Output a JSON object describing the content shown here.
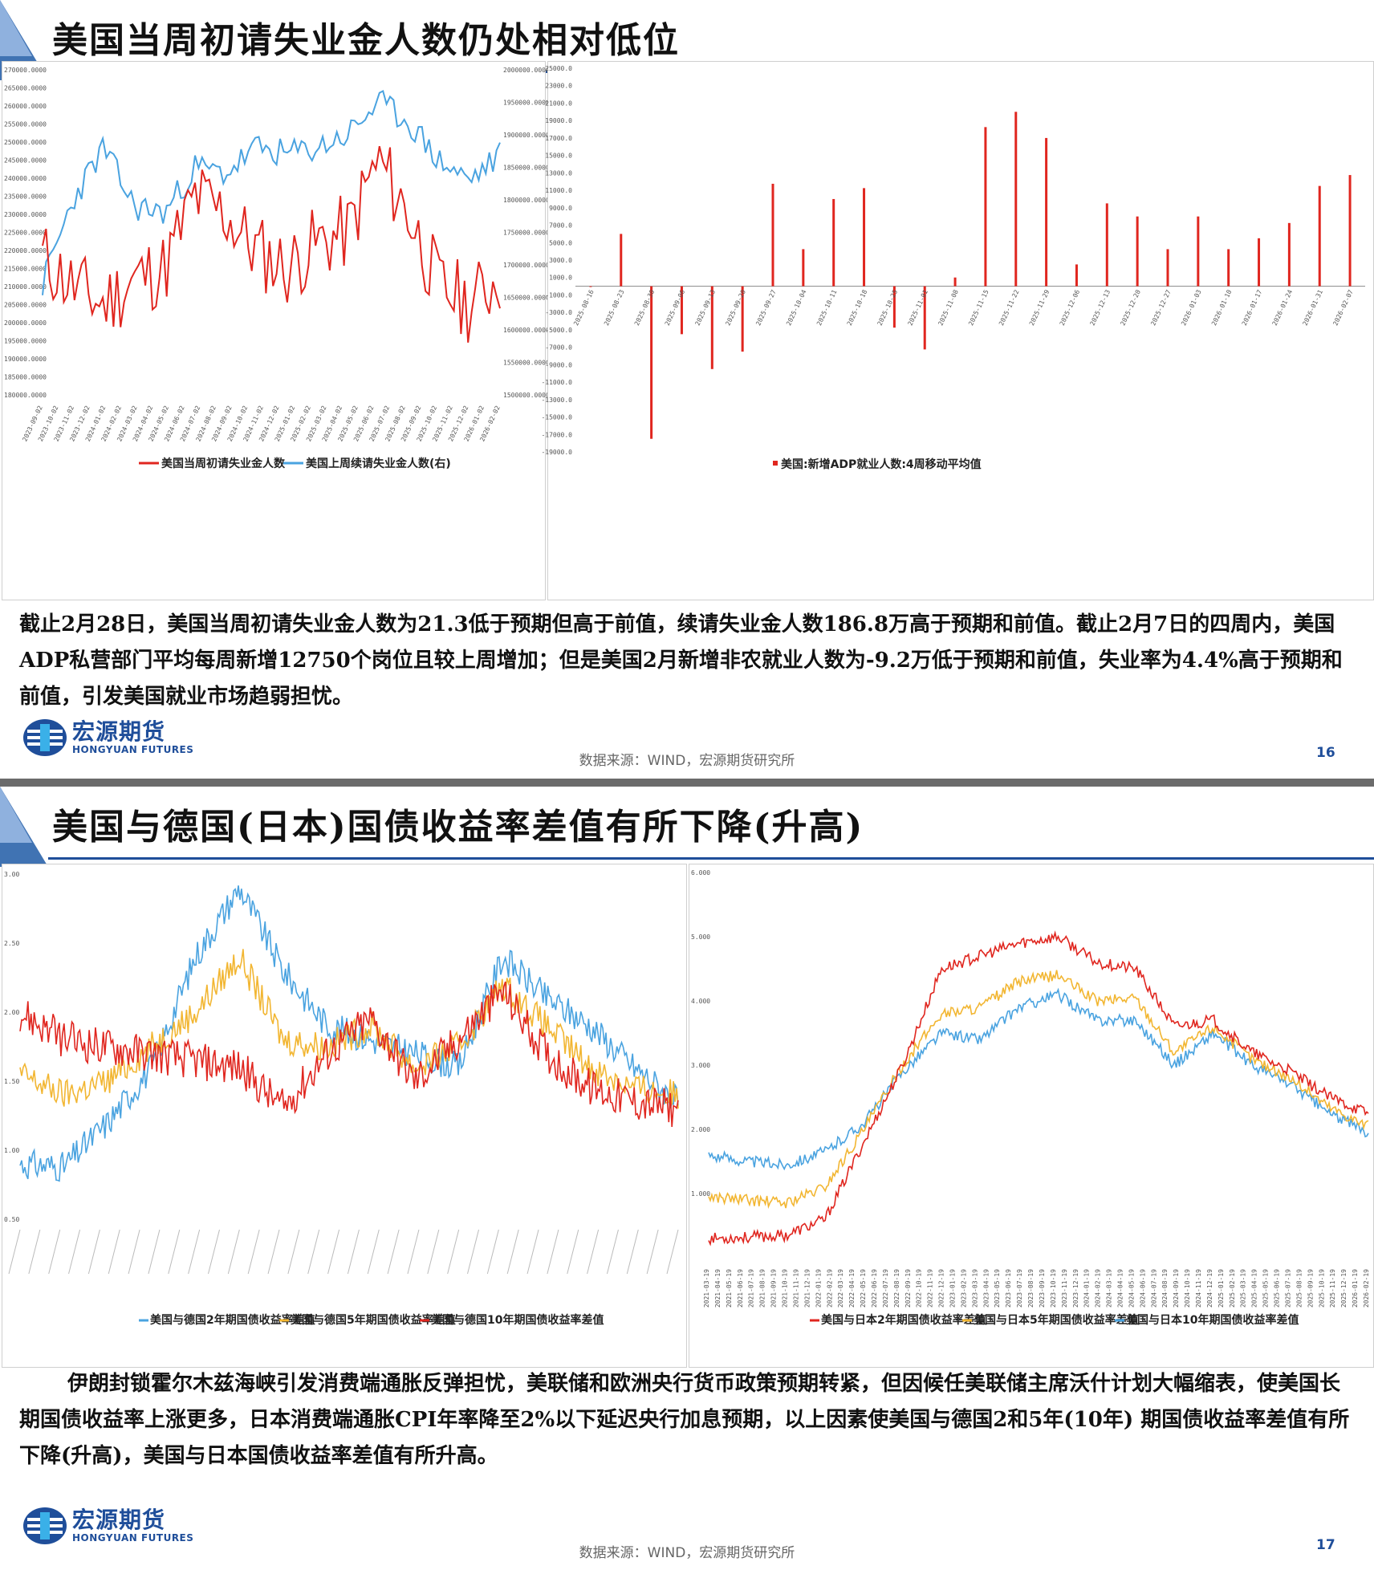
{
  "slide1": {
    "title": "美国当周初请失业金人数仍处相对低位",
    "left_chart": {
      "type": "line",
      "y_left_ticks": [
        "270000.0000",
        "265000.0000",
        "260000.0000",
        "255000.0000",
        "250000.0000",
        "245000.0000",
        "240000.0000",
        "235000.0000",
        "230000.0000",
        "225000.0000",
        "220000.0000",
        "215000.0000",
        "210000.0000",
        "205000.0000",
        "200000.0000",
        "195000.0000",
        "190000.0000",
        "185000.0000",
        "180000.0000"
      ],
      "y_right_ticks": [
        "2000000.0000",
        "1950000.0000",
        "1900000.0000",
        "1850000.0000",
        "1800000.0000",
        "1750000.0000",
        "1700000.0000",
        "1650000.0000",
        "1600000.0000",
        "1550000.0000",
        "1500000.0000"
      ],
      "x_ticks": [
        "2023-09-02",
        "2023-10-02",
        "2023-11-02",
        "2023-12-02",
        "2024-01-02",
        "2024-02-02",
        "2024-03-02",
        "2024-04-02",
        "2024-05-02",
        "2024-06-02",
        "2024-07-02",
        "2024-08-02",
        "2024-09-02",
        "2024-10-02",
        "2024-11-02",
        "2024-12-02",
        "2025-01-02",
        "2025-02-02",
        "2025-03-02",
        "2025-04-02",
        "2025-05-02",
        "2025-06-02",
        "2025-07-02",
        "2025-08-02",
        "2025-09-02",
        "2025-10-02",
        "2025-11-02",
        "2025-12-02",
        "2026-01-02",
        "2026-02-02"
      ],
      "legend": [
        "美国当周初请失业金人数",
        "美国上周续请失业金人数(右)"
      ],
      "colors": [
        "#e0261f",
        "#4aa3e0"
      ]
    },
    "right_chart": {
      "type": "bar",
      "y_ticks": [
        "25000.0",
        "23000.0",
        "21000.0",
        "19000.0",
        "17000.0",
        "15000.0",
        "13000.0",
        "11000.0",
        "9000.0",
        "7000.0",
        "5000.0",
        "3000.0",
        "1000.0",
        "-1000.0",
        "-3000.0",
        "-5000.0",
        "-7000.0",
        "-9000.0",
        "-11000.0",
        "-13000.0",
        "-15000.0",
        "-17000.0",
        "-19000.0"
      ],
      "x_ticks": [
        "2025-08-16",
        "2025-08-23",
        "2025-08-30",
        "2025-09-06",
        "2025-09-13",
        "2025-09-20",
        "2025-09-27",
        "2025-10-04",
        "2025-10-11",
        "2025-10-18",
        "2025-10-25",
        "2025-11-01",
        "2025-11-08",
        "2025-11-15",
        "2025-11-22",
        "2025-11-29",
        "2025-12-06",
        "2025-12-13",
        "2025-12-20",
        "2025-12-27",
        "2026-01-03",
        "2026-01-10",
        "2026-01-17",
        "2026-01-24",
        "2026-01-31",
        "2026-02-07"
      ],
      "legend": [
        "美国:新增ADP就业人数:4周移动平均值"
      ],
      "color": "#e0261f"
    },
    "paragraph": "截止2月28日，美国当周初请失业金人数为21.3低于预期但高于前值，续请失业金人数186.8万高于预期和前值。截止2月7日的四周内，美国ADP私营部门平均每周新增12750个岗位且较上周增加；但是美国2月新增非农就业人数为-9.2万低于预期和前值，失业率为4.4%高于预期和前值，引发美国就业市场趋弱担忧。",
    "source": "数据来源：WIND，宏源期货研究所",
    "page": "16"
  },
  "slide2": {
    "title": "美国与德国(日本)国债收益率差值有所下降(升高)",
    "left_chart": {
      "type": "line",
      "y_ticks": [
        "3.00",
        "2.50",
        "2.00",
        "1.50",
        "1.00",
        "0.50"
      ],
      "legend": [
        "美国与德国2年期国债收益率差值",
        "美国与德国5年期国债收益率差值",
        "美国与德国10年期国债收益率差值"
      ],
      "colors": [
        "#4aa3e0",
        "#f2b632",
        "#e0261f"
      ]
    },
    "right_chart": {
      "type": "line",
      "y_ticks": [
        "6.000",
        "5.000",
        "4.000",
        "3.000",
        "2.000",
        "1.000"
      ],
      "x_ticks": [
        "2021-03-19",
        "2021-04-19",
        "2021-05-19",
        "2021-06-19",
        "2021-07-19",
        "2021-08-19",
        "2021-09-19",
        "2021-10-19",
        "2021-11-19",
        "2021-12-19",
        "2022-01-19",
        "2022-02-19",
        "2022-03-19",
        "2022-04-19",
        "2022-05-19",
        "2022-06-19",
        "2022-07-19",
        "2022-08-19",
        "2022-09-19",
        "2022-10-19",
        "2022-11-19",
        "2022-12-19",
        "2023-01-19",
        "2023-02-19",
        "2023-03-19",
        "2023-04-19",
        "2023-05-19",
        "2023-06-19",
        "2023-07-19",
        "2023-08-19",
        "2023-09-19",
        "2023-10-19",
        "2023-11-19",
        "2023-12-19",
        "2024-01-19",
        "2024-02-19",
        "2024-03-19",
        "2024-04-19",
        "2024-05-19",
        "2024-06-19",
        "2024-07-19",
        "2024-08-19",
        "2024-09-19",
        "2024-10-19",
        "2024-11-19",
        "2024-12-19",
        "2025-01-19",
        "2025-02-19",
        "2025-03-19",
        "2025-04-19",
        "2025-05-19",
        "2025-06-19",
        "2025-07-19",
        "2025-08-19",
        "2025-09-19",
        "2025-10-19",
        "2025-11-19",
        "2025-12-19",
        "2026-01-19",
        "2026-02-19"
      ],
      "legend": [
        "美国与日本2年期国债收益率差值",
        "美国与日本5年期国债收益率差值",
        "美国与日本10年期国债收益率差值"
      ],
      "colors": [
        "#e0261f",
        "#f2b632",
        "#4aa3e0"
      ]
    },
    "paragraph": "伊朗封锁霍尔木兹海峡引发消费端通胀反弹担忧，美联储和欧洲央行货币政策预期转紧，但因候任美联储主席沃什计划大幅缩表，使美国长期国债收益率上涨更多，日本消费端通胀CPI年率降至2%以下延迟央行加息预期，以上因素使美国与德国2和5年(10年) 期国债收益率差值有所下降(升高)，美国与日本国债收益率差值有所升高。",
    "source": "数据来源：WIND，宏源期货研究所",
    "page": "17"
  },
  "brand": {
    "cn": "宏源期货",
    "en": "HONGYUAN FUTURES"
  },
  "chart_data": [
    {
      "type": "line",
      "title": "",
      "series": [
        {
          "name": "美国当周初请失业金人数",
          "axis": "left",
          "x": [
            "2023-09-02",
            "2023-11-02",
            "2024-01-02",
            "2024-03-02",
            "2024-05-02",
            "2024-07-02",
            "2024-09-02",
            "2024-11-02",
            "2025-01-02",
            "2025-03-02",
            "2025-05-02",
            "2025-07-02",
            "2025-09-02",
            "2025-11-02",
            "2026-01-02",
            "2026-02-28"
          ],
          "values": [
            218000,
            210000,
            205000,
            212000,
            215000,
            235000,
            230000,
            220000,
            215000,
            222000,
            225000,
            245000,
            230000,
            210000,
            205000,
            213000
          ]
        },
        {
          "name": "美国上周续请失业金人数(右)",
          "axis": "right",
          "x": [
            "2023-09-02",
            "2023-11-02",
            "2024-01-02",
            "2024-03-02",
            "2024-05-02",
            "2024-07-02",
            "2024-09-02",
            "2024-11-02",
            "2025-01-02",
            "2025-03-02",
            "2025-05-02",
            "2025-07-02",
            "2025-09-02",
            "2025-11-02",
            "2026-01-02",
            "2026-02-28"
          ],
          "values": [
            1670000,
            1800000,
            1880000,
            1790000,
            1780000,
            1850000,
            1840000,
            1880000,
            1870000,
            1880000,
            1900000,
            1950000,
            1920000,
            1860000,
            1830000,
            1868000
          ]
        }
      ],
      "ylim_left": [
        180000,
        270000
      ],
      "ylim_right": [
        1500000,
        2000000
      ]
    },
    {
      "type": "bar",
      "series": [
        {
          "name": "美国:新增ADP就业人数:4周移动平均值",
          "x": [
            "2025-08-16",
            "2025-08-23",
            "2025-08-30",
            "2025-09-06",
            "2025-09-13",
            "2025-09-20",
            "2025-09-27",
            "2025-10-04",
            "2025-10-11",
            "2025-10-18",
            "2025-10-25",
            "2025-11-01",
            "2025-11-08",
            "2025-11-15",
            "2025-11-22",
            "2025-11-29",
            "2025-12-06",
            "2025-12-13",
            "2025-12-20",
            "2025-12-27",
            "2026-01-03",
            "2026-01-10",
            "2026-01-17",
            "2026-01-24",
            "2026-01-31",
            "2026-02-07"
          ],
          "values": [
            0,
            6000,
            -17500,
            -5500,
            -9500,
            -7500,
            11750,
            4250,
            10000,
            11250,
            -4750,
            -7250,
            1000,
            18250,
            20000,
            17000,
            2500,
            9500,
            8000,
            4250,
            8000,
            4250,
            5500,
            7250,
            11500,
            12750
          ]
        }
      ],
      "ylim": [
        -19000,
        25000
      ]
    },
    {
      "type": "line",
      "series": [
        {
          "name": "美国与德国2年期国债收益率差值",
          "values": [
            0.9,
            0.88,
            1.2,
            1.6,
            2.4,
            2.9,
            2.3,
            1.9,
            1.8,
            1.7,
            1.6,
            2.4,
            2.1,
            1.9,
            1.6,
            1.35
          ]
        },
        {
          "name": "美国与德国5年期国债收益率差值",
          "values": [
            1.55,
            1.4,
            1.5,
            1.75,
            2.0,
            2.4,
            1.8,
            1.75,
            1.9,
            1.6,
            1.75,
            2.2,
            1.9,
            1.6,
            1.45,
            1.4
          ]
        },
        {
          "name": "美国与德国10年期国债收益率差值",
          "values": [
            2.0,
            1.8,
            1.75,
            1.7,
            1.65,
            1.6,
            1.3,
            1.7,
            1.95,
            1.5,
            1.8,
            2.15,
            1.7,
            1.45,
            1.35,
            1.3
          ]
        }
      ],
      "ylim": [
        0.5,
        3.0
      ]
    },
    {
      "type": "line",
      "series": [
        {
          "name": "美国与日本2年期国债收益率差值",
          "values": [
            0.3,
            0.32,
            0.35,
            0.6,
            1.8,
            3.0,
            4.5,
            4.7,
            4.9,
            5.0,
            4.6,
            4.5,
            3.6,
            3.7,
            3.2,
            2.9,
            2.5,
            2.25
          ]
        },
        {
          "name": "美国与日本5年期国债收益率差值",
          "values": [
            0.95,
            0.9,
            0.85,
            1.1,
            2.0,
            3.0,
            3.8,
            3.9,
            4.3,
            4.4,
            4.0,
            4.05,
            3.2,
            3.6,
            3.1,
            2.8,
            2.35,
            2.05
          ]
        },
        {
          "name": "美国与日本10年期国债收益率差值",
          "values": [
            1.6,
            1.5,
            1.45,
            1.65,
            2.1,
            2.9,
            3.5,
            3.4,
            3.9,
            4.1,
            3.7,
            3.7,
            3.0,
            3.5,
            3.0,
            2.7,
            2.25,
            1.95
          ]
        }
      ],
      "ylim": [
        0,
        6
      ]
    }
  ]
}
